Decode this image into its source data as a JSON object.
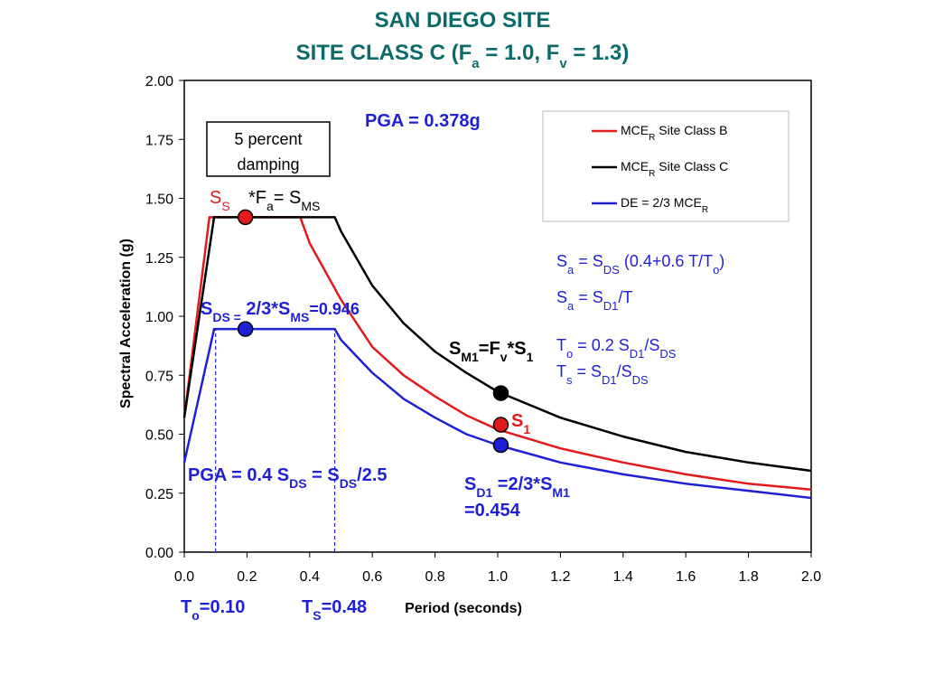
{
  "chart_data": {
    "type": "line",
    "title_line1": "SAN DIEGO SITE",
    "title_line2": {
      "p1": "SITE CLASS C (F",
      "s1": "a",
      "p2": " = 1.0, F",
      "s2": "v",
      "p3": " = 1.3)"
    },
    "xlabel": "Period (seconds)",
    "ylabel": "Spectral Acceleration (g)",
    "xlim": [
      0,
      2.0
    ],
    "ylim": [
      0,
      2.0
    ],
    "xticks": [
      "0.0",
      "0.2",
      "0.4",
      "0.6",
      "0.8",
      "1.0",
      "1.2",
      "1.4",
      "1.6",
      "1.8",
      "2.0"
    ],
    "yticks": [
      "0.00",
      "0.25",
      "0.50",
      "0.75",
      "1.00",
      "1.25",
      "1.50",
      "1.75",
      "2.00"
    ],
    "grid": false,
    "legend_position": "top-right",
    "series": [
      {
        "name": {
          "p1": "MCE",
          "sub": "R",
          "p2": " Site Class B"
        },
        "color": "#e31a1c",
        "x": [
          0.0,
          0.08,
          0.37,
          0.4,
          0.5,
          0.6,
          0.7,
          0.8,
          0.9,
          1.0,
          1.2,
          1.4,
          1.6,
          1.8,
          2.0
        ],
        "y": [
          0.57,
          1.42,
          1.42,
          1.31,
          1.07,
          0.87,
          0.75,
          0.66,
          0.58,
          0.52,
          0.44,
          0.38,
          0.33,
          0.29,
          0.265
        ]
      },
      {
        "name": {
          "p1": "MCE",
          "sub": "R",
          "p2": " Site Class C"
        },
        "color": "#000000",
        "x": [
          0.0,
          0.095,
          0.48,
          0.5,
          0.6,
          0.7,
          0.8,
          0.9,
          1.0,
          1.2,
          1.4,
          1.6,
          1.8,
          2.0
        ],
        "y": [
          0.57,
          1.42,
          1.42,
          1.36,
          1.13,
          0.97,
          0.85,
          0.76,
          0.68,
          0.57,
          0.49,
          0.425,
          0.38,
          0.345
        ]
      },
      {
        "name": {
          "p1": "DE = 2/3 MCE",
          "sub": "R",
          "p2": ""
        },
        "color": "#1f1fd6",
        "x": [
          0.0,
          0.095,
          0.48,
          0.5,
          0.6,
          0.7,
          0.8,
          0.9,
          1.0,
          1.2,
          1.4,
          1.6,
          1.8,
          2.0
        ],
        "y": [
          0.38,
          0.946,
          0.946,
          0.9,
          0.76,
          0.65,
          0.57,
          0.5,
          0.454,
          0.38,
          0.33,
          0.29,
          0.26,
          0.23
        ]
      }
    ],
    "points": [
      {
        "name": "Ss",
        "x": 0.195,
        "y": 1.42,
        "color": "#e31a1c"
      },
      {
        "name": "SDS",
        "x": 0.195,
        "y": 0.946,
        "color": "#1f1fd6"
      },
      {
        "name": "SM1",
        "x": 1.01,
        "y": 0.674,
        "color": "#000000"
      },
      {
        "name": "S1",
        "x": 1.01,
        "y": 0.54,
        "color": "#e31a1c"
      },
      {
        "name": "SD1",
        "x": 1.01,
        "y": 0.454,
        "color": "#1f1fd6"
      }
    ],
    "vlines": [
      {
        "x": 0.1,
        "y": 0.946,
        "color": "#1f1fd6"
      },
      {
        "x": 0.48,
        "y": 0.946,
        "color": "#1f1fd6"
      }
    ],
    "annotations": {
      "pga_top": "PGA = 0.378g",
      "damping_line1": "5 percent",
      "damping_line2": "damping",
      "ss_S": "S",
      "ss_sub": "S",
      "fa_p1": "*F",
      "fa_sub": "a",
      "fa_p2": "= S",
      "fa_sub2": "MS",
      "sds_S": "S",
      "sds_sub": "DS =",
      "sds_rest": " 2/3*S",
      "sds_sub2": "MS",
      "sds_val": "=0.946",
      "sm1_S": "S",
      "sm1_sub": "M1",
      "sm1_p2": "=F",
      "sm1_sub2": "v",
      "sm1_p3": "*S",
      "sm1_sub3": "1",
      "s1_S": "S",
      "s1_sub": "1",
      "sd1_S": "S",
      "sd1_sub": "D1",
      "sd1_rest": " =2/3*S",
      "sd1_sub2": "M1",
      "sd1_val": "=0.454",
      "pga_bottom_p1": "PGA = 0.4 S",
      "pga_bottom_sub1": "DS",
      "pga_bottom_p2": " = S",
      "pga_bottom_sub2": "DS",
      "pga_bottom_p3": "/2.5",
      "eq1_p1": "S",
      "eq1_sub1": "a",
      "eq1_p2": " = S",
      "eq1_sub2": "DS",
      "eq1_p3": " (0.4+0.6 T/T",
      "eq1_sub3": "o",
      "eq1_p4": ")",
      "eq2_p1": "S",
      "eq2_sub1": "a",
      "eq2_p2": " = S",
      "eq2_sub2": "D1",
      "eq2_p3": "/T",
      "eq3_p1": "T",
      "eq3_sub1": "o",
      "eq3_p2": " = 0.2 S",
      "eq3_sub2": "D1",
      "eq3_p3": "/S",
      "eq3_sub3": "DS",
      "eq4_p1": "T",
      "eq4_sub1": "s",
      "eq4_p2": " = S",
      "eq4_sub2": "D1",
      "eq4_p3": "/S",
      "eq4_sub3": "DS",
      "to_p1": "T",
      "to_sub": "o",
      "to_val": "=0.10",
      "ts_p1": "T",
      "ts_sub": "S",
      "ts_val": "=0.48"
    }
  }
}
